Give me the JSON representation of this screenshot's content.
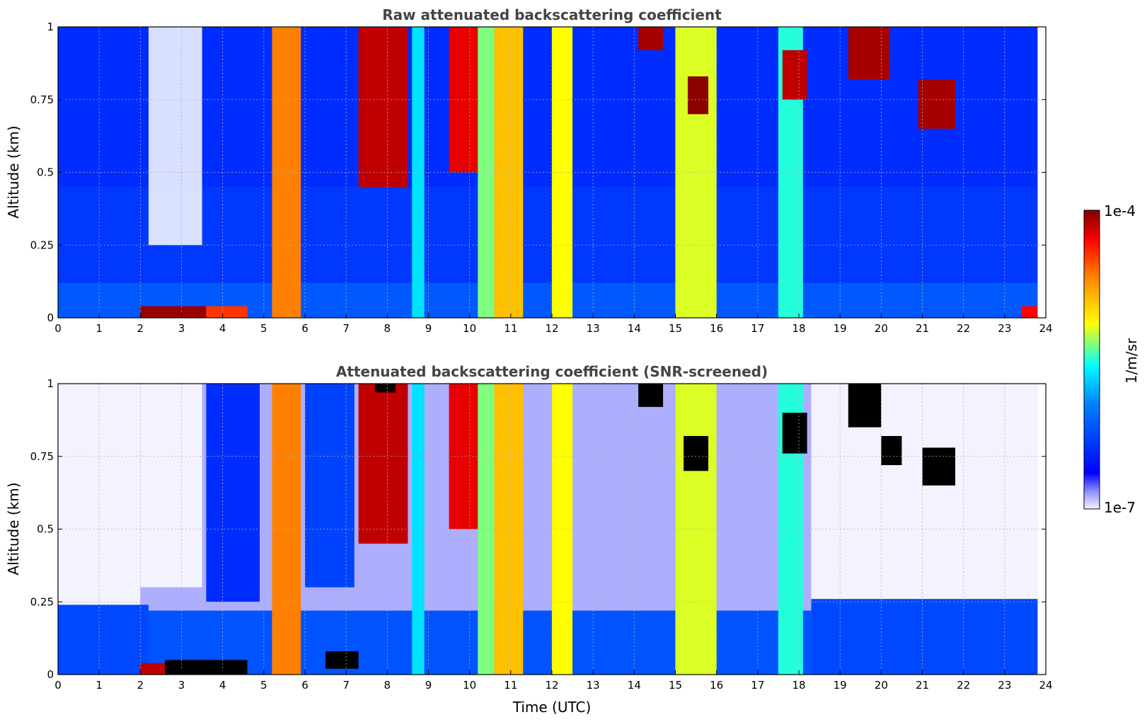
{
  "chart_data": [
    {
      "type": "heatmap",
      "title": "Raw attenuated backscattering coefficient",
      "xlabel": "",
      "ylabel": "Altitude (km)",
      "xlim": [
        0,
        24
      ],
      "ylim": [
        0,
        1
      ],
      "x_ticks": [
        "0",
        "1",
        "2",
        "3",
        "4",
        "5",
        "6",
        "7",
        "8",
        "9",
        "10",
        "11",
        "12",
        "13",
        "14",
        "15",
        "16",
        "17",
        "18",
        "19",
        "20",
        "21",
        "22",
        "23",
        "24"
      ],
      "y_ticks": [
        "0",
        "0.25",
        "0.5",
        "0.75",
        "1"
      ],
      "grid": true,
      "layers": [
        {
          "x": [
            0,
            23.8
          ],
          "y": [
            0.0,
            0.12
          ],
          "level": 0.28
        },
        {
          "x": [
            0,
            23.8
          ],
          "y": [
            0.12,
            0.45
          ],
          "level": 0.22
        },
        {
          "x": [
            2.0,
            3.6
          ],
          "y": [
            0.0,
            0.04
          ],
          "level": 0.98
        },
        {
          "x": [
            3.6,
            4.6
          ],
          "y": [
            0.0,
            0.04
          ],
          "level": 0.85
        },
        {
          "x": [
            23.4,
            23.8
          ],
          "y": [
            0.0,
            0.04
          ],
          "level": 0.9
        }
      ],
      "clear_regions": [
        {
          "x": [
            2.2,
            3.5
          ],
          "y": [
            0.25,
            1.0
          ]
        }
      ],
      "columns": [
        {
          "x": [
            5.2,
            5.9
          ],
          "y": [
            0.0,
            1.0
          ],
          "level": 0.78
        },
        {
          "x": [
            7.3,
            8.5
          ],
          "y": [
            0.45,
            1.0
          ],
          "level": 0.95
        },
        {
          "x": [
            8.6,
            8.9
          ],
          "y": [
            0.0,
            1.0
          ],
          "level": 0.45
        },
        {
          "x": [
            9.5,
            10.5
          ],
          "y": [
            0.5,
            1.0
          ],
          "level": 0.92
        },
        {
          "x": [
            10.2,
            10.6
          ],
          "y": [
            0.0,
            1.0
          ],
          "level": 0.55
        },
        {
          "x": [
            10.6,
            11.3
          ],
          "y": [
            0.0,
            1.0
          ],
          "level": 0.7
        },
        {
          "x": [
            12.0,
            12.5
          ],
          "y": [
            0.0,
            1.0
          ],
          "level": 0.62
        },
        {
          "x": [
            14.1,
            14.7
          ],
          "y": [
            0.92,
            1.0
          ],
          "level": 0.97
        },
        {
          "x": [
            15.0,
            16.0
          ],
          "y": [
            0.0,
            1.0
          ],
          "level": 0.6
        },
        {
          "x": [
            15.3,
            15.8
          ],
          "y": [
            0.7,
            0.83
          ],
          "level": 0.99
        },
        {
          "x": [
            17.5,
            18.1
          ],
          "y": [
            0.0,
            1.0
          ],
          "level": 0.5
        },
        {
          "x": [
            17.6,
            18.2
          ],
          "y": [
            0.75,
            0.92
          ],
          "level": 0.95
        },
        {
          "x": [
            19.2,
            20.2
          ],
          "y": [
            0.82,
            1.0
          ],
          "level": 0.97
        },
        {
          "x": [
            20.9,
            21.8
          ],
          "y": [
            0.65,
            0.82
          ],
          "level": 0.97
        }
      ]
    },
    {
      "type": "heatmap",
      "title": "Attenuated backscattering coefficient (SNR-screened)",
      "xlabel": "Time (UTC)",
      "ylabel": "Altitude (km)",
      "xlim": [
        0,
        24
      ],
      "ylim": [
        0,
        1
      ],
      "x_ticks": [
        "0",
        "1",
        "2",
        "3",
        "4",
        "5",
        "6",
        "7",
        "8",
        "9",
        "10",
        "11",
        "12",
        "13",
        "14",
        "15",
        "16",
        "17",
        "18",
        "19",
        "20",
        "21",
        "22",
        "23",
        "24"
      ],
      "y_ticks": [
        "0",
        "0.25",
        "0.5",
        "0.75",
        "1"
      ],
      "grid": true,
      "layers": [
        {
          "x": [
            0,
            2.2
          ],
          "y": [
            0.0,
            0.24
          ],
          "level": 0.25
        },
        {
          "x": [
            2.2,
            18.3
          ],
          "y": [
            0.0,
            0.22
          ],
          "level": 0.27
        },
        {
          "x": [
            18.3,
            23.8
          ],
          "y": [
            0.0,
            0.26
          ],
          "level": 0.25
        },
        {
          "x": [
            2.0,
            3.2
          ],
          "y": [
            0.0,
            0.04
          ],
          "level": 0.95
        },
        {
          "x": [
            2.6,
            4.6
          ],
          "y": [
            0.0,
            0.05
          ],
          "level": 1.05
        },
        {
          "x": [
            6.5,
            7.3
          ],
          "y": [
            0.02,
            0.08
          ],
          "level": 1.05
        }
      ],
      "clear_regions": [
        {
          "x": [
            0,
            2.0
          ],
          "y": [
            0.24,
            1.0
          ]
        },
        {
          "x": [
            2.0,
            3.5
          ],
          "y": [
            0.3,
            1.0
          ]
        },
        {
          "x": [
            18.3,
            23.8
          ],
          "y": [
            0.26,
            1.0
          ]
        }
      ],
      "columns": [
        {
          "x": [
            3.6,
            4.9
          ],
          "y": [
            0.25,
            1.0
          ],
          "level": 0.2
        },
        {
          "x": [
            5.2,
            5.9
          ],
          "y": [
            0.0,
            1.0
          ],
          "level": 0.78
        },
        {
          "x": [
            6.0,
            7.2
          ],
          "y": [
            0.3,
            1.0
          ],
          "level": 0.24
        },
        {
          "x": [
            7.3,
            8.5
          ],
          "y": [
            0.45,
            1.0
          ],
          "level": 0.95
        },
        {
          "x": [
            7.7,
            8.2
          ],
          "y": [
            0.97,
            1.0
          ],
          "level": 1.05
        },
        {
          "x": [
            8.6,
            8.9
          ],
          "y": [
            0.0,
            1.0
          ],
          "level": 0.45
        },
        {
          "x": [
            9.5,
            10.5
          ],
          "y": [
            0.5,
            1.0
          ],
          "level": 0.92
        },
        {
          "x": [
            10.2,
            10.6
          ],
          "y": [
            0.0,
            1.0
          ],
          "level": 0.55
        },
        {
          "x": [
            10.6,
            11.3
          ],
          "y": [
            0.0,
            1.0
          ],
          "level": 0.7
        },
        {
          "x": [
            12.0,
            12.5
          ],
          "y": [
            0.0,
            1.0
          ],
          "level": 0.62
        },
        {
          "x": [
            14.1,
            14.7
          ],
          "y": [
            0.92,
            1.0
          ],
          "level": 1.05
        },
        {
          "x": [
            15.0,
            16.0
          ],
          "y": [
            0.0,
            1.0
          ],
          "level": 0.6
        },
        {
          "x": [
            15.2,
            15.8
          ],
          "y": [
            0.7,
            0.82
          ],
          "level": 1.05
        },
        {
          "x": [
            17.5,
            18.1
          ],
          "y": [
            0.0,
            1.0
          ],
          "level": 0.5
        },
        {
          "x": [
            17.6,
            18.2
          ],
          "y": [
            0.76,
            0.9
          ],
          "level": 1.05
        },
        {
          "x": [
            19.2,
            20.0
          ],
          "y": [
            0.85,
            1.0
          ],
          "level": 1.05
        },
        {
          "x": [
            20.0,
            20.5
          ],
          "y": [
            0.72,
            0.82
          ],
          "level": 1.05
        },
        {
          "x": [
            21.0,
            21.8
          ],
          "y": [
            0.65,
            0.78
          ],
          "level": 1.05
        }
      ]
    }
  ],
  "colorbar": {
    "label": "1/m/sr",
    "max_label": "1e-4",
    "min_label": "1e-7",
    "colormap": "jet",
    "clip_color": "#000000"
  }
}
